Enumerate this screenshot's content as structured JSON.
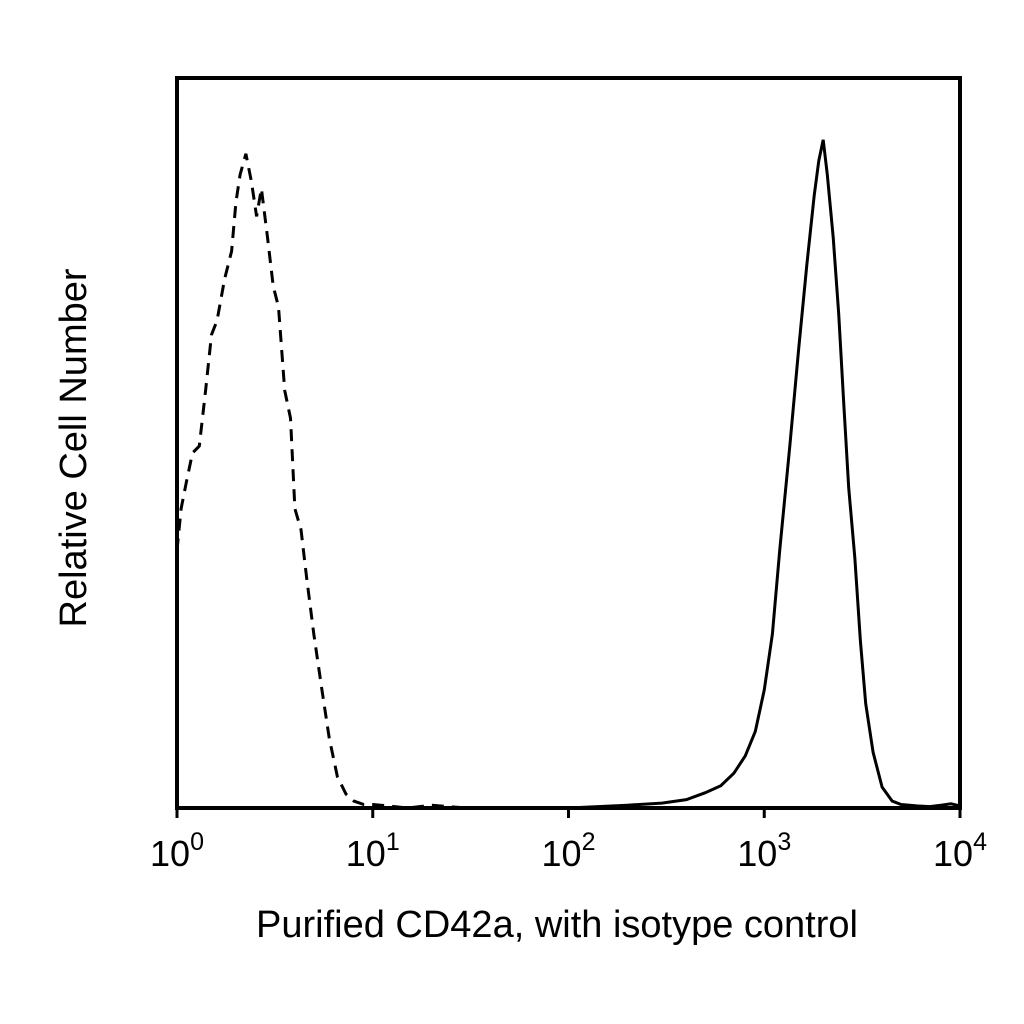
{
  "chart_data": {
    "type": "line",
    "title": "",
    "xlabel": "Purified CD42a, with isotype control",
    "ylabel": "Relative Cell Number",
    "x_scale": "log",
    "xlim": [
      1,
      10000
    ],
    "ylim": [
      0,
      100
    ],
    "grid": false,
    "legend": "none",
    "x_ticks": [
      {
        "value": 1,
        "base": "10",
        "exp": "0"
      },
      {
        "value": 10,
        "base": "10",
        "exp": "1"
      },
      {
        "value": 100,
        "base": "10",
        "exp": "2"
      },
      {
        "value": 1000,
        "base": "10",
        "exp": "3"
      },
      {
        "value": 10000,
        "base": "10",
        "exp": "4"
      }
    ],
    "series": [
      {
        "line_style": "dashed",
        "color": "#000000",
        "x": [
          1.0,
          1.05,
          1.12,
          1.2,
          1.3,
          1.4,
          1.5,
          1.6,
          1.75,
          1.9,
          2.0,
          2.1,
          2.25,
          2.4,
          2.55,
          2.7,
          2.9,
          3.1,
          3.3,
          3.55,
          3.8,
          4.0,
          4.3,
          4.6,
          5.0,
          5.5,
          6.0,
          6.6,
          7.3,
          8.0,
          9.0,
          10.0,
          12.0,
          15.0,
          20.0,
          30.0,
          50.0
        ],
        "y": [
          37,
          43,
          47,
          51,
          52,
          60,
          68,
          70,
          76,
          80,
          87,
          91,
          94,
          90,
          85,
          89,
          82,
          75,
          72,
          60,
          56,
          43,
          40,
          33,
          25,
          17,
          10,
          4.5,
          2,
          1,
          0.5,
          0.5,
          0.3,
          0,
          0.4,
          0,
          0
        ]
      },
      {
        "line_style": "solid",
        "color": "#000000",
        "x": [
          100,
          200,
          300,
          400,
          500,
          600,
          700,
          800,
          900,
          1000,
          1100,
          1200,
          1350,
          1500,
          1650,
          1800,
          1900,
          2000,
          2100,
          2250,
          2400,
          2550,
          2700,
          2900,
          3100,
          3300,
          3600,
          4000,
          4500,
          5000,
          6000,
          7000,
          8000,
          9000,
          10000
        ],
        "y": [
          0,
          0.4,
          0.7,
          1.2,
          2.2,
          3.2,
          5,
          7.5,
          11,
          17,
          25,
          37,
          52,
          66,
          78,
          88,
          93,
          96,
          91,
          82,
          71,
          58,
          46,
          36,
          24,
          15,
          8,
          3,
          1,
          0.5,
          0.3,
          0.2,
          0.4,
          0.6,
          0.3
        ]
      }
    ]
  }
}
